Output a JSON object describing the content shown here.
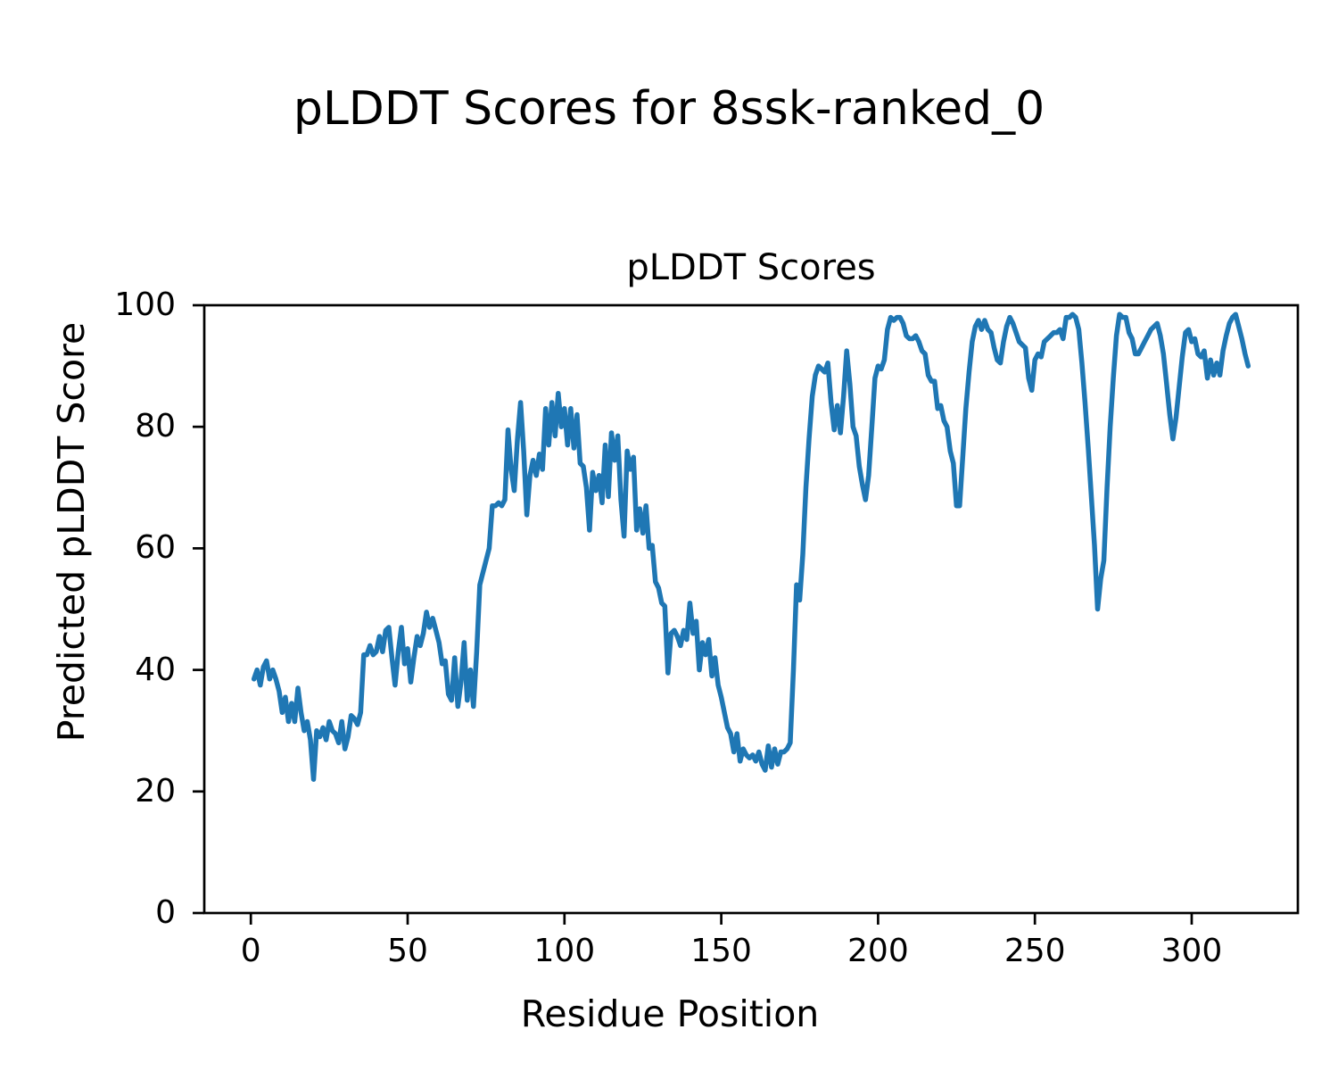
{
  "figure": {
    "suptitle": "pLDDT Scores for 8ssk-ranked_0",
    "axes_title": "pLDDT Scores",
    "xlabel": "Residue Position",
    "ylabel": "Predicted pLDDT Score"
  },
  "chart_data": {
    "type": "line",
    "title": "pLDDT Scores",
    "suptitle": "pLDDT Scores for 8ssk-ranked_0",
    "xlabel": "Residue Position",
    "ylabel": "Predicted pLDDT Score",
    "line_color": "#1f77b4",
    "axis_color": "#000000",
    "grid": false,
    "legend": "none",
    "x_start": 1,
    "x_step": 1,
    "xlim": [
      -14.85,
      333.85
    ],
    "ylim": [
      0,
      100
    ],
    "xticks": [
      0,
      50,
      100,
      150,
      200,
      250,
      300
    ],
    "yticks": [
      0,
      20,
      40,
      60,
      80,
      100
    ],
    "values": [
      38.5,
      40,
      37.5,
      40.5,
      41.5,
      38.5,
      40,
      38.5,
      36.5,
      33,
      35.5,
      31.5,
      34.5,
      31.5,
      37,
      33,
      30,
      31.5,
      28.5,
      22,
      30,
      29,
      30.5,
      28.5,
      31.5,
      30,
      29.5,
      28,
      31.5,
      27,
      29,
      32.5,
      32,
      31,
      33,
      42.5,
      42.5,
      44,
      42.5,
      43,
      45.5,
      43,
      46.5,
      47,
      42,
      37.5,
      43,
      47,
      41,
      43.5,
      38,
      42,
      45.5,
      44,
      46,
      49.5,
      47,
      48.5,
      46.5,
      44.5,
      41,
      41.5,
      36,
      35,
      42,
      34,
      38,
      44.5,
      35,
      40,
      34,
      43,
      54,
      56,
      58,
      60,
      67,
      67,
      67.5,
      67,
      68,
      79.5,
      73,
      69.5,
      78,
      84,
      76,
      65.5,
      72,
      74.5,
      72,
      75.5,
      73,
      83,
      77,
      84,
      78.5,
      85.5,
      80,
      83,
      77,
      83,
      76.5,
      82,
      74,
      73.5,
      70,
      63,
      72.5,
      69.5,
      72,
      67.5,
      77,
      68.5,
      79,
      74.5,
      78.5,
      68,
      62,
      76,
      73,
      75,
      63,
      66.5,
      62.5,
      67,
      60,
      60.5,
      54.5,
      53.5,
      51,
      50.5,
      39.5,
      46,
      46.5,
      45.5,
      44,
      46.5,
      45,
      51,
      46,
      48,
      40,
      44.5,
      42.5,
      45,
      39,
      42,
      37.5,
      35.5,
      33,
      30.5,
      29.5,
      26.5,
      29.5,
      25,
      27,
      26,
      25.5,
      26,
      25,
      26.5,
      24.5,
      23.5,
      27.5,
      24,
      27,
      24.5,
      26.5,
      26.5,
      27,
      28,
      40,
      54,
      51.5,
      59,
      70,
      78,
      85,
      88.5,
      90,
      89.5,
      89,
      90.5,
      84,
      79.5,
      83.5,
      79,
      85,
      92.5,
      87,
      80,
      78.5,
      73.5,
      70.5,
      68,
      72,
      80,
      88,
      90,
      89.5,
      91,
      96,
      98,
      97.5,
      98,
      98,
      97,
      95,
      94.5,
      94.5,
      95,
      94,
      92.5,
      92,
      88.5,
      87.5,
      87.5,
      83,
      83.5,
      81,
      80,
      76,
      74,
      67,
      67,
      75,
      83,
      89,
      94,
      96.5,
      97.5,
      96,
      97.5,
      96,
      95.5,
      93,
      91,
      90.5,
      94,
      96.5,
      98,
      97,
      95.5,
      94,
      93.5,
      93,
      88,
      86,
      91,
      92,
      91.5,
      94,
      94.5,
      95,
      95.5,
      95.5,
      96,
      94.5,
      98,
      98,
      98.5,
      98,
      96,
      90.5,
      84,
      76.5,
      68.5,
      60.5,
      50,
      55,
      58,
      70,
      80,
      88,
      95,
      98.5,
      98,
      98,
      95.5,
      94.5,
      92,
      92,
      93,
      94,
      95,
      96,
      96.5,
      97,
      95,
      92,
      87,
      82,
      78,
      81.5,
      86.5,
      91.5,
      95.5,
      96,
      94,
      94.5,
      92,
      91.5,
      92.5,
      88,
      91,
      88.5,
      90.5,
      88.5,
      92.5,
      95,
      97,
      98,
      98.5,
      96.5,
      94.5,
      92,
      90
    ]
  }
}
